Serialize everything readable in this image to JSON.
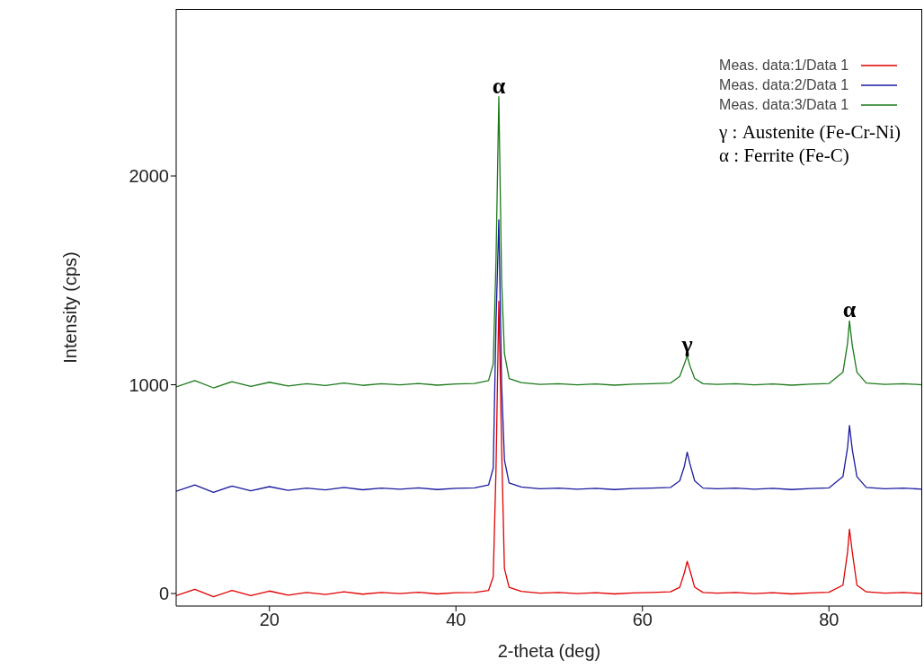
{
  "chart_data": {
    "type": "line",
    "xlabel": "2-theta (deg)",
    "ylabel": "Intensity (cps)",
    "x": [
      10,
      12,
      14,
      16,
      18,
      20,
      22,
      24,
      26,
      28,
      30,
      32,
      34,
      36,
      38,
      40,
      42,
      43.5,
      44,
      44.3,
      44.6,
      44.9,
      45.2,
      45.7,
      47,
      49,
      51,
      53,
      55,
      57,
      59,
      61,
      63,
      64,
      64.5,
      64.8,
      65.1,
      65.6,
      66.5,
      68,
      70,
      72,
      74,
      76,
      78,
      80,
      81.5,
      82,
      82.2,
      82.5,
      83,
      84,
      86,
      88,
      90
    ],
    "series": [
      {
        "name": "Meas. data:1/Data 1",
        "color": "#e00000",
        "values": [
          -10,
          20,
          -15,
          15,
          -10,
          12,
          -8,
          5,
          -5,
          8,
          -3,
          5,
          0,
          6,
          -2,
          4,
          5,
          15,
          80,
          600,
          1400,
          700,
          120,
          30,
          10,
          2,
          5,
          0,
          4,
          -2,
          3,
          5,
          8,
          30,
          100,
          154,
          110,
          30,
          5,
          2,
          5,
          0,
          4,
          -2,
          3,
          6,
          40,
          200,
          308,
          200,
          40,
          8,
          2,
          5,
          0
        ]
      },
      {
        "name": "Meas. data:2/Data 1",
        "color": "#1a1aa0",
        "values": [
          490,
          520,
          485,
          515,
          492,
          512,
          494,
          505,
          496,
          508,
          497,
          505,
          500,
          506,
          498,
          504,
          506,
          520,
          600,
          1300,
          1790,
          1000,
          640,
          530,
          510,
          502,
          505,
          500,
          504,
          498,
          503,
          505,
          508,
          540,
          610,
          677,
          620,
          540,
          505,
          502,
          505,
          500,
          504,
          498,
          503,
          506,
          560,
          700,
          805,
          690,
          560,
          508,
          502,
          505,
          500
        ]
      },
      {
        "name": "Meas. data:3/Data 1",
        "color": "#1a7a1a",
        "values": [
          990,
          1020,
          985,
          1015,
          992,
          1012,
          994,
          1005,
          996,
          1008,
          997,
          1005,
          1000,
          1006,
          998,
          1004,
          1006,
          1020,
          1100,
          1600,
          2380,
          1500,
          1150,
          1030,
          1010,
          1002,
          1005,
          1000,
          1004,
          998,
          1003,
          1005,
          1008,
          1040,
          1100,
          1139,
          1090,
          1030,
          1005,
          1002,
          1005,
          1000,
          1004,
          998,
          1003,
          1006,
          1060,
          1200,
          1306,
          1190,
          1060,
          1008,
          1002,
          1005,
          1000
        ]
      }
    ],
    "xlim": [
      10,
      90
    ],
    "ylim": [
      -60,
      2800
    ],
    "xticks": [
      20,
      40,
      60,
      80
    ],
    "yticks": [
      0,
      1000,
      2000
    ],
    "grid": false,
    "legend": "top right",
    "marker": "none",
    "line_style": "solid",
    "annotations": [
      {
        "text": "α",
        "x": 44.6,
        "y": 2380
      },
      {
        "text": "γ",
        "x": 64.8,
        "y": 1139
      },
      {
        "text": "α",
        "x": 82.2,
        "y": 1306
      },
      "γ : Austenite (Fe-Cr-Ni)",
      "α : Ferrite (Fe-C)"
    ]
  }
}
